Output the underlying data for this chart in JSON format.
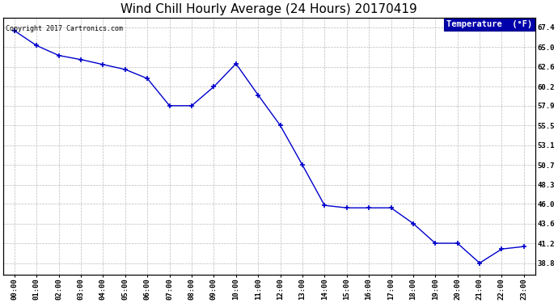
{
  "title": "Wind Chill Hourly Average (24 Hours) 20170419",
  "copyright": "Copyright 2017 Cartronics.com",
  "legend_label": "Temperature  (°F)",
  "hours": [
    "00:00",
    "01:00",
    "02:00",
    "03:00",
    "04:00",
    "05:00",
    "06:00",
    "07:00",
    "08:00",
    "09:00",
    "10:00",
    "11:00",
    "12:00",
    "13:00",
    "14:00",
    "15:00",
    "16:00",
    "17:00",
    "18:00",
    "19:00",
    "20:00",
    "21:00",
    "22:00",
    "23:00"
  ],
  "values": [
    67.0,
    65.2,
    64.0,
    63.5,
    62.9,
    62.3,
    61.2,
    57.9,
    57.9,
    60.2,
    63.0,
    59.2,
    55.5,
    50.7,
    45.8,
    45.5,
    45.5,
    45.5,
    43.6,
    41.2,
    41.2,
    38.8,
    40.5,
    40.8
  ],
  "line_color": "#0000CC",
  "marker_color": "#0000CC",
  "bg_color": "#ffffff",
  "plot_bg_color": "#ffffff",
  "grid_color": "#bbbbbb",
  "yticks": [
    38.8,
    41.2,
    43.6,
    46.0,
    48.3,
    50.7,
    53.1,
    55.5,
    57.9,
    60.2,
    62.6,
    65.0,
    67.4
  ],
  "ylim": [
    37.4,
    68.6
  ],
  "title_fontsize": 11,
  "copyright_fontsize": 6,
  "tick_fontsize": 6.5,
  "legend_bg": "#0000AA",
  "legend_text_color": "#ffffff"
}
